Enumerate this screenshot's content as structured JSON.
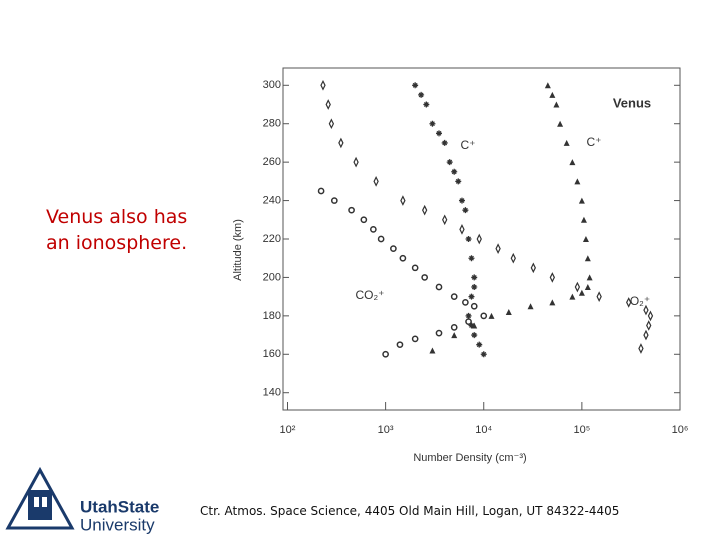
{
  "slide_text": "Venus also has an ionosphere.",
  "footer": "Ctr. Atmos. Space Science, 4405 Old Main Hill, Logan, UT  84322-4405",
  "logo": {
    "line1": "UtahState",
    "line2": "University"
  },
  "chart_data": {
    "type": "scatter",
    "log_x": true,
    "xlabel": "Number Density (cm⁻³)",
    "ylabel": "Altitude (km)",
    "annotations": [
      "Venus",
      "C⁺",
      "C⁺",
      "CO₂⁺",
      "O₂⁺"
    ],
    "xlim": [
      90,
      1000000
    ],
    "xticks": [
      {
        "value": 100,
        "label": "10²"
      },
      {
        "value": 1000,
        "label": "10³"
      },
      {
        "value": 10000,
        "label": "10⁴"
      },
      {
        "value": 100000,
        "label": "10⁵"
      },
      {
        "value": 1000000,
        "label": "10⁶"
      }
    ],
    "ylim": [
      131,
      309
    ],
    "yticks": [
      140,
      160,
      180,
      200,
      220,
      240,
      260,
      280,
      300
    ],
    "series": [
      {
        "marker": "diamond",
        "color": "#333333",
        "x": [
          230,
          260,
          280,
          350,
          500,
          800,
          1500,
          2500,
          4000,
          6000,
          9000,
          14000,
          20000,
          32000,
          50000,
          90000,
          150000,
          300000,
          450000,
          500000,
          480000,
          450000,
          400000
        ],
        "values": [
          300,
          290,
          280,
          270,
          260,
          250,
          240,
          235,
          230,
          225,
          220,
          215,
          210,
          205,
          200,
          195,
          190,
          187,
          183,
          180,
          175,
          170,
          163
        ]
      },
      {
        "marker": "star",
        "color": "#333333",
        "x": [
          220,
          300,
          450,
          600,
          750,
          900,
          1200,
          1500,
          2000,
          2500,
          3500,
          5000,
          6500,
          8000,
          10000,
          7000,
          5000,
          3500,
          2000,
          1400,
          1000
        ],
        "values": [
          245,
          240,
          235,
          230,
          225,
          220,
          215,
          210,
          205,
          200,
          195,
          190,
          187,
          185,
          180,
          177,
          174,
          171,
          168,
          165,
          160
        ]
      },
      {
        "marker": "asterisk",
        "color": "#333333",
        "x": [
          2000,
          2300,
          2600,
          3000,
          3500,
          4000,
          4500,
          5000,
          5500,
          6000,
          6500,
          7000,
          7500,
          8000,
          8000,
          7500,
          7000,
          7500,
          8000,
          9000,
          10000
        ],
        "values": [
          300,
          295,
          290,
          280,
          275,
          270,
          260,
          255,
          250,
          240,
          235,
          220,
          210,
          200,
          195,
          190,
          180,
          175,
          170,
          165,
          160
        ]
      },
      {
        "marker": "triangle",
        "color": "#333333",
        "x": [
          45000,
          50000,
          55000,
          60000,
          70000,
          80000,
          90000,
          100000,
          105000,
          110000,
          115000,
          120000,
          115000,
          100000,
          80000,
          50000,
          30000,
          18000,
          12000,
          8000,
          5000,
          3000
        ],
        "values": [
          300,
          295,
          290,
          280,
          270,
          260,
          250,
          240,
          230,
          220,
          210,
          200,
          195,
          192,
          190,
          187,
          185,
          182,
          180,
          175,
          170,
          162
        ]
      }
    ]
  }
}
